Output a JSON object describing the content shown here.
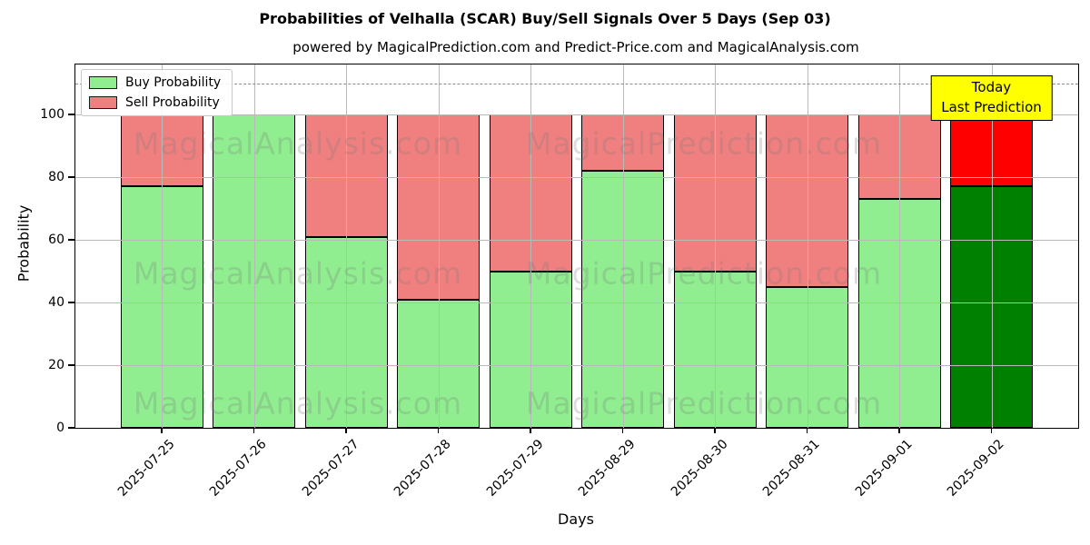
{
  "title": "Probabilities of Velhalla (SCAR) Buy/Sell Signals Over 5 Days (Sep 03)",
  "subtitle": "powered by MagicalPrediction.com and Predict-Price.com and MagicalAnalysis.com",
  "axes": {
    "xlabel": "Days",
    "ylabel": "Probability",
    "yticks": [
      0,
      20,
      40,
      60,
      80,
      100
    ],
    "ylim": [
      0,
      116
    ],
    "dashed_line_y": 110,
    "grid": true
  },
  "legend": {
    "position": "top-left",
    "items": [
      {
        "label": "Buy Probability",
        "color": "#90EE90"
      },
      {
        "label": "Sell Probability",
        "color": "#F08080"
      }
    ]
  },
  "annotation": {
    "line1": "Today",
    "line2": "Last Prediction",
    "bg_color": "#FFFF00",
    "border_color": "#000000"
  },
  "watermarks": {
    "left": "MagicalAnalysis.com",
    "right": "MagicalPrediction.com"
  },
  "chart_data": {
    "type": "bar",
    "stacked": true,
    "title": "Probabilities of Velhalla (SCAR) Buy/Sell Signals Over 5 Days (Sep 03)",
    "xlabel": "Days",
    "ylabel": "Probability",
    "ylim": [
      0,
      116
    ],
    "grid": true,
    "legend_position": "upper left",
    "categories": [
      "2025-07-25",
      "2025-07-26",
      "2025-07-27",
      "2025-07-28",
      "2025-07-29",
      "2025-08-29",
      "2025-08-30",
      "2025-08-31",
      "2025-09-01",
      "2025-09-02"
    ],
    "series": [
      {
        "name": "Buy Probability",
        "color": "#90EE90",
        "values": [
          77,
          100,
          61,
          41,
          50,
          82,
          50,
          45,
          73,
          77
        ]
      },
      {
        "name": "Sell Probability",
        "color": "#F08080",
        "values": [
          23,
          0,
          39,
          59,
          50,
          18,
          50,
          55,
          27,
          23
        ]
      }
    ],
    "today_index": 9,
    "today_colors": {
      "buy": "#008000",
      "sell": "#FF0000"
    },
    "dashed_line_y": 110
  }
}
